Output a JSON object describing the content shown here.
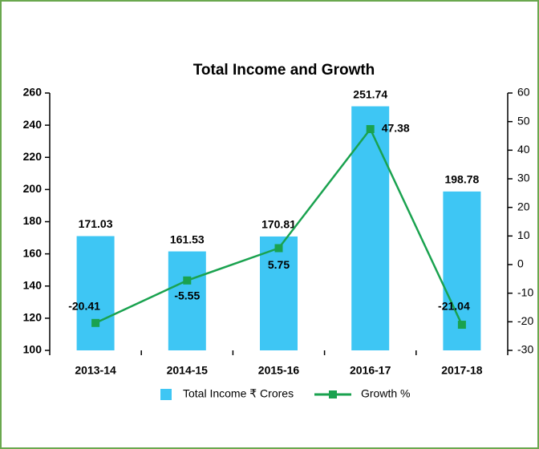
{
  "chart_data": {
    "type": "bar",
    "title": "Total Income and Growth",
    "categories": [
      "2013-14",
      "2014-15",
      "2015-16",
      "2016-17",
      "2017-18"
    ],
    "series": [
      {
        "name": "Total Income ₹ Crores",
        "type": "bar",
        "color": "#3ec6f4",
        "values": [
          171.03,
          161.53,
          170.81,
          251.74,
          198.78
        ]
      },
      {
        "name": "Growth %",
        "type": "line",
        "axis": "y2",
        "color": "#1aa24f",
        "values": [
          -20.41,
          -5.55,
          5.75,
          47.38,
          -21.04
        ]
      }
    ],
    "ylim": [
      100,
      260
    ],
    "yticks": [
      100,
      120,
      140,
      160,
      180,
      200,
      220,
      240,
      260
    ],
    "y2lim": [
      -30,
      60
    ],
    "y2ticks": [
      -30,
      -20,
      -10,
      0,
      10,
      20,
      30,
      40,
      50,
      60
    ],
    "legend": "bottom"
  }
}
